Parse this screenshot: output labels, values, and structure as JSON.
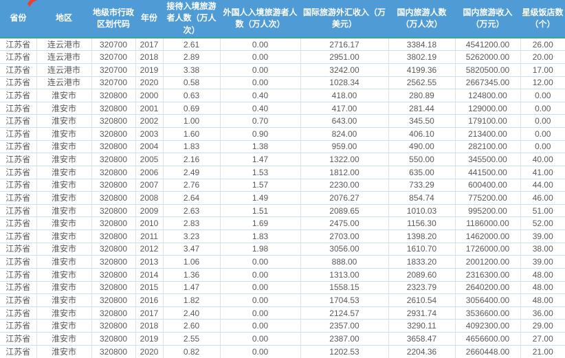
{
  "table": {
    "columns": [
      "省份",
      "地区",
      "地级市行政区划代码",
      "年份",
      "接待入境旅游者人数（万人次）",
      "外国人入境旅游者人数（万人次）",
      "国际旅游外汇收入（万美元）",
      "国内旅游人数（万人次）",
      "国内旅游收入（万元）",
      "星级饭店数（个）"
    ],
    "rows": [
      [
        "江苏省",
        "连云港市",
        "320700",
        "2017",
        "2.61",
        "0.00",
        "2716.17",
        "3384.18",
        "4541200.00",
        "26.00"
      ],
      [
        "江苏省",
        "连云港市",
        "320700",
        "2018",
        "2.89",
        "0.00",
        "2951.00",
        "3802.19",
        "5262000.00",
        "20.00"
      ],
      [
        "江苏省",
        "连云港市",
        "320700",
        "2019",
        "3.38",
        "0.00",
        "3242.00",
        "4199.36",
        "5820500.00",
        "17.00"
      ],
      [
        "江苏省",
        "连云港市",
        "320700",
        "2020",
        "0.58",
        "0.00",
        "1028.34",
        "2562.55",
        "2667345.00",
        "12.00"
      ],
      [
        "江苏省",
        "淮安市",
        "320800",
        "2000",
        "0.63",
        "0.40",
        "418.00",
        "280.89",
        "124800.00",
        "0.00"
      ],
      [
        "江苏省",
        "淮安市",
        "320800",
        "2001",
        "0.69",
        "0.40",
        "417.00",
        "281.44",
        "129000.00",
        "0.00"
      ],
      [
        "江苏省",
        "淮安市",
        "320800",
        "2002",
        "1.00",
        "0.70",
        "643.00",
        "345.50",
        "179100.00",
        "0.00"
      ],
      [
        "江苏省",
        "淮安市",
        "320800",
        "2003",
        "1.60",
        "0.90",
        "824.00",
        "406.10",
        "213400.00",
        "0.00"
      ],
      [
        "江苏省",
        "淮安市",
        "320800",
        "2004",
        "1.83",
        "1.38",
        "959.00",
        "490.00",
        "282100.00",
        "0.00"
      ],
      [
        "江苏省",
        "淮安市",
        "320800",
        "2005",
        "2.16",
        "1.47",
        "1322.00",
        "550.00",
        "345500.00",
        "40.00"
      ],
      [
        "江苏省",
        "淮安市",
        "320800",
        "2006",
        "2.49",
        "1.53",
        "1812.00",
        "635.00",
        "441500.00",
        "41.00"
      ],
      [
        "江苏省",
        "淮安市",
        "320800",
        "2007",
        "2.76",
        "1.57",
        "2230.00",
        "733.29",
        "600400.00",
        "44.00"
      ],
      [
        "江苏省",
        "淮安市",
        "320800",
        "2008",
        "2.64",
        "1.49",
        "2076.27",
        "854.74",
        "775200.00",
        "46.00"
      ],
      [
        "江苏省",
        "淮安市",
        "320800",
        "2009",
        "2.63",
        "1.51",
        "2089.65",
        "1010.03",
        "995200.00",
        "51.00"
      ],
      [
        "江苏省",
        "淮安市",
        "320800",
        "2010",
        "2.83",
        "1.69",
        "2475.00",
        "1156.30",
        "1186000.00",
        "52.00"
      ],
      [
        "江苏省",
        "淮安市",
        "320800",
        "2011",
        "3.23",
        "1.83",
        "2703.00",
        "1398.20",
        "1462000.00",
        "39.00"
      ],
      [
        "江苏省",
        "淮安市",
        "320800",
        "2012",
        "3.47",
        "1.98",
        "3056.00",
        "1610.70",
        "1726000.00",
        "38.00"
      ],
      [
        "江苏省",
        "淮安市",
        "320800",
        "2013",
        "1.06",
        "0.00",
        "888.00",
        "1833.20",
        "2001200.00",
        "39.00"
      ],
      [
        "江苏省",
        "淮安市",
        "320800",
        "2014",
        "1.36",
        "0.00",
        "1313.00",
        "2089.60",
        "2316300.00",
        "48.00"
      ],
      [
        "江苏省",
        "淮安市",
        "320800",
        "2015",
        "1.47",
        "0.00",
        "1558.15",
        "2323.79",
        "2640200.00",
        "48.00"
      ],
      [
        "江苏省",
        "淮安市",
        "320800",
        "2016",
        "1.82",
        "0.00",
        "1704.53",
        "2610.54",
        "3056400.00",
        "48.00"
      ],
      [
        "江苏省",
        "淮安市",
        "320800",
        "2017",
        "2.40",
        "0.00",
        "2124.57",
        "2931.74",
        "3536600.00",
        "36.00"
      ],
      [
        "江苏省",
        "淮安市",
        "320800",
        "2018",
        "2.60",
        "0.00",
        "2357.00",
        "3290.11",
        "4092300.00",
        "29.00"
      ],
      [
        "江苏省",
        "淮安市",
        "320800",
        "2019",
        "2.55",
        "0.00",
        "2387.00",
        "3658.47",
        "4656600.00",
        "27.00"
      ],
      [
        "江苏省",
        "淮安市",
        "320800",
        "2020",
        "0.82",
        "0.00",
        "1202.53",
        "2204.36",
        "2660448.00",
        "21.00"
      ]
    ]
  },
  "colors": {
    "header_bg": "#4f9bd5",
    "header_text": "#ffffff",
    "accent_line": "#35a88f",
    "grid_horizontal": "#cbdff2",
    "grid_vertical": "#d9e2ec",
    "cell_text": "#595959",
    "marker_red": "#e8412c"
  },
  "annotations": {
    "marker": "red-arrow-marker"
  }
}
